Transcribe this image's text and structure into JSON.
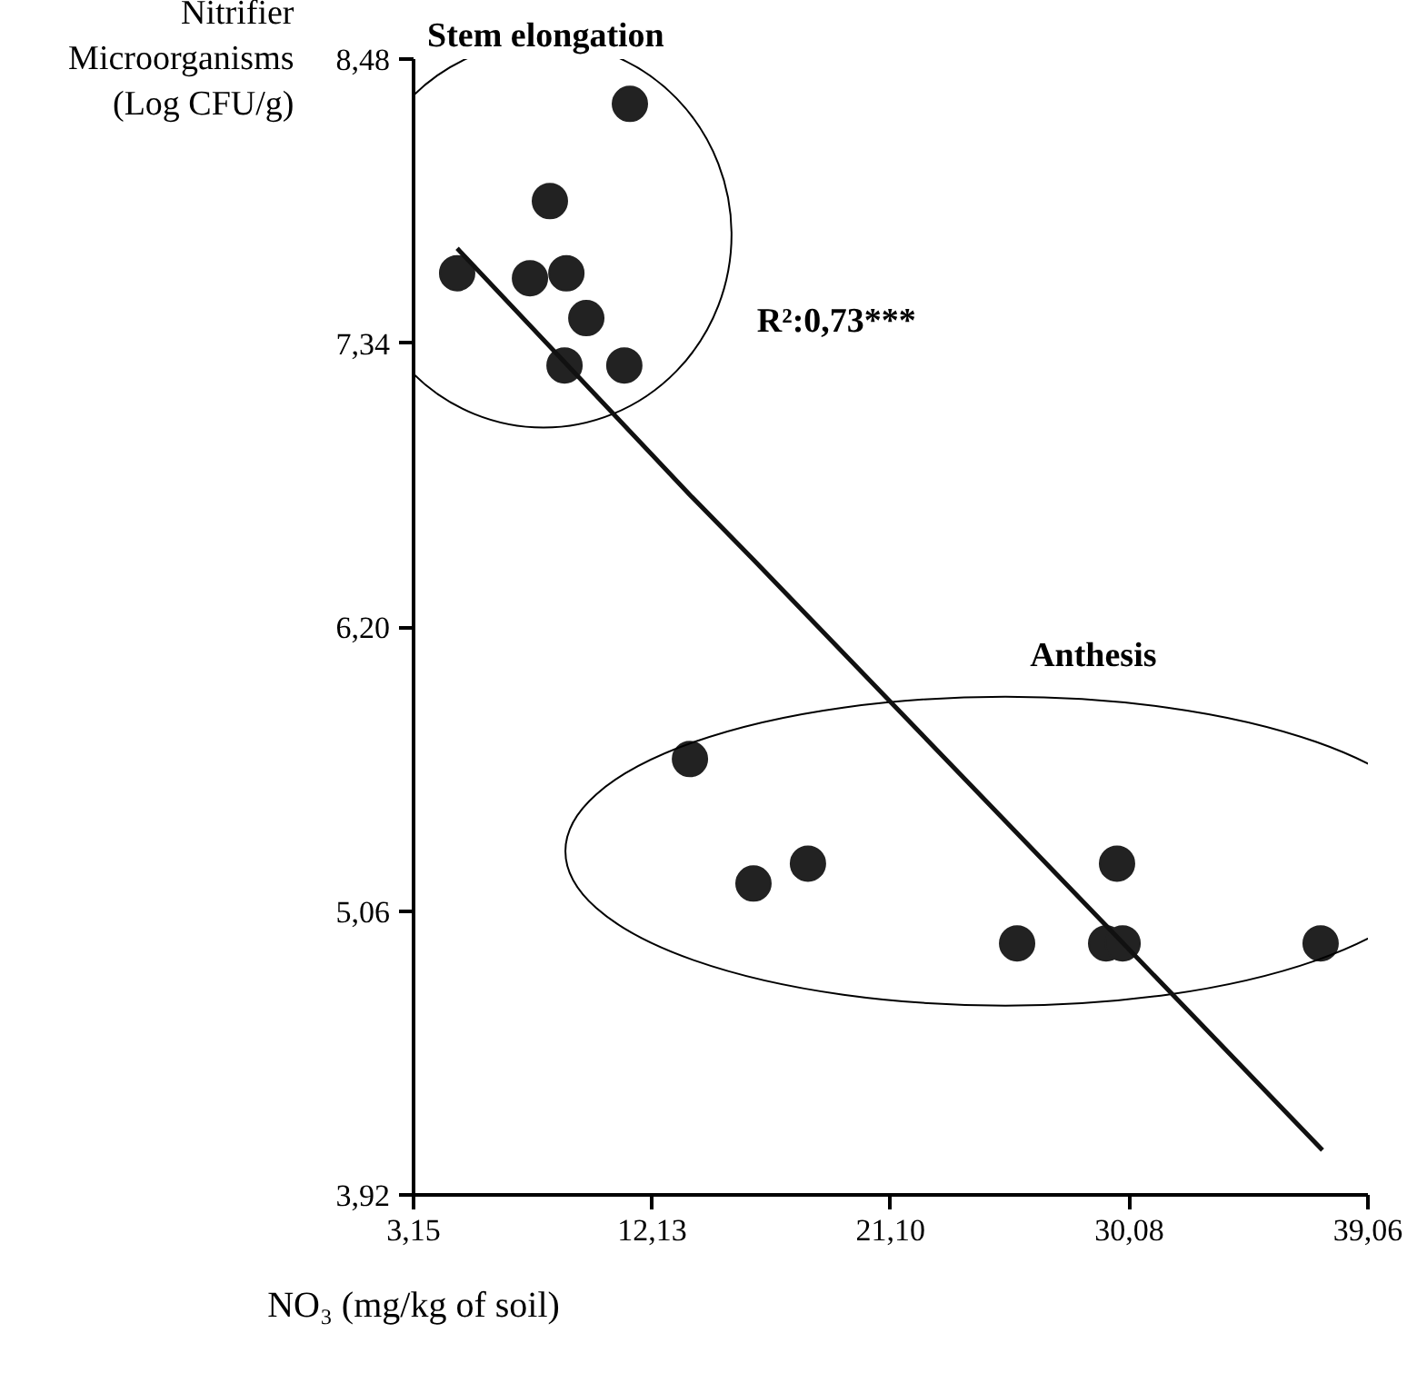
{
  "chart_data": {
    "type": "scatter",
    "xlabel": "NO₃ (mg/kg of soil)",
    "ylabel": "Nitrifier Microorganisms (Log CFU/g)",
    "annotations": [
      "Stem elongation",
      "Anthesis",
      "R²:0,73***"
    ],
    "series": [
      {
        "color": "#222222",
        "x": [
          11.29,
          8.28,
          4.79,
          7.53,
          8.9,
          9.65,
          8.83,
          11.08
        ],
        "values": [
          8.3,
          7.91,
          7.62,
          7.6,
          7.62,
          7.44,
          7.25,
          7.25
        ]
      },
      {
        "color": "#222222",
        "x": [
          13.55,
          15.94,
          17.99,
          25.86,
          29.21,
          29.83,
          29.62,
          37.28
        ],
        "values": [
          5.67,
          5.17,
          5.25,
          4.93,
          4.93,
          4.93,
          5.25,
          4.93
        ]
      },
      {
        "type": "line",
        "marker": "none",
        "color": "#111111",
        "x": [
          4.79,
          13.55,
          15.94,
          37.35
        ],
        "values": [
          7.72,
          6.73,
          6.47,
          4.1
        ]
      }
    ],
    "marker": "circle",
    "line_style": "solid",
    "grid": false,
    "xlim": [
      3.15,
      39.06
    ],
    "ylim": [
      3.92,
      8.48
    ],
    "xticks": [
      {
        "value": 3.15,
        "label": "3,15"
      },
      {
        "value": 12.13,
        "label": "12,13"
      },
      {
        "value": 21.1,
        "label": "21,10"
      },
      {
        "value": 30.08,
        "label": "30,08"
      },
      {
        "value": 39.06,
        "label": "39,06"
      }
    ],
    "yticks": [
      {
        "value": 3.92,
        "label": "3,92"
      },
      {
        "value": 5.06,
        "label": "5,06"
      },
      {
        "value": 6.2,
        "label": "6,20"
      },
      {
        "value": 7.34,
        "label": "7,34"
      },
      {
        "value": 8.48,
        "label": "8,48"
      }
    ]
  }
}
